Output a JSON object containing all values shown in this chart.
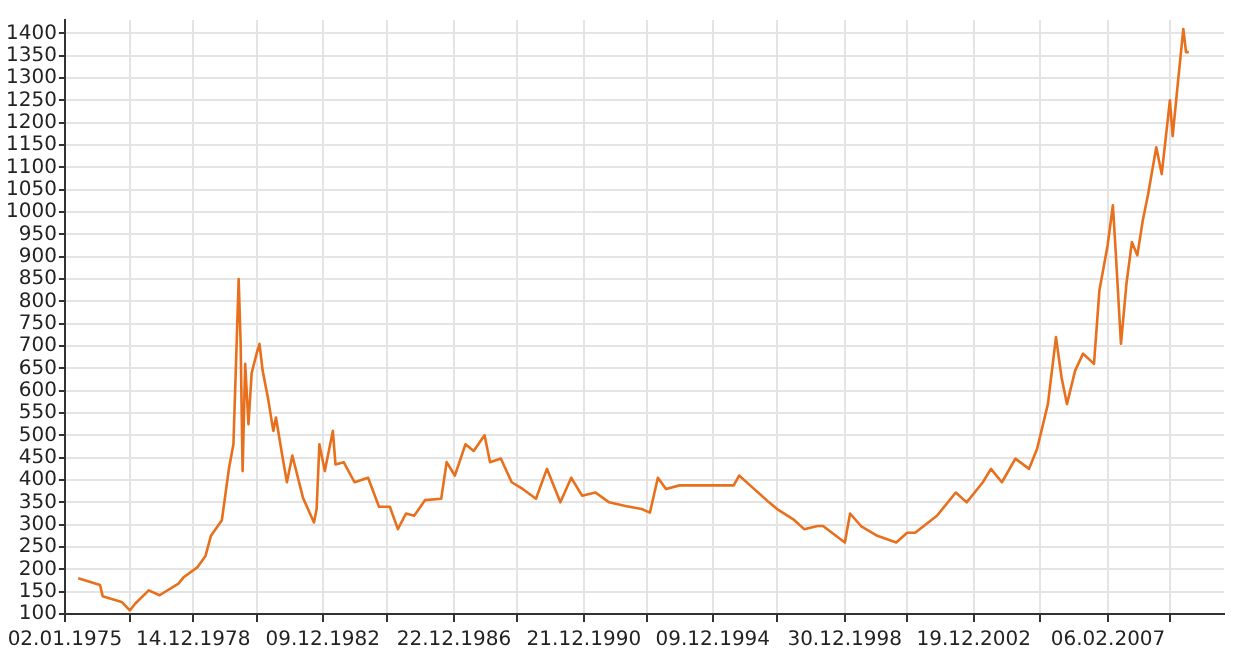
{
  "chart_data": {
    "type": "line",
    "x": [
      "1975-06",
      "1976-02",
      "1976-03",
      "1976-10",
      "1977-01",
      "1977-03",
      "1977-08",
      "1977-12",
      "1978-07",
      "1978-09",
      "1979-02",
      "1979-05",
      "1979-07",
      "1979-11",
      "1980-01-19",
      "1980-03-10",
      "1980-05-08",
      "1980-05-30",
      "1980-06-21",
      "1980-07-20",
      "1980-08-26",
      "1980-10-01",
      "1980-11-28",
      "1980-12-28",
      "1981-02",
      "1981-04",
      "1981-06",
      "1981-07",
      "1981-09",
      "1981-11",
      "1982-01",
      "1982-05",
      "1982-09",
      "1982-10",
      "1982-11",
      "1983-01",
      "1983-04",
      "1983-05",
      "1983-08",
      "1983-12",
      "1984-05",
      "1984-09",
      "1985-01",
      "1985-04",
      "1985-07",
      "1985-10",
      "1986-02",
      "1986-08",
      "1986-10",
      "1987-01",
      "1987-05",
      "1987-08",
      "1987-12",
      "1988-02",
      "1988-06",
      "1988-10",
      "1989-02",
      "1989-07",
      "1989-11",
      "1990-04",
      "1990-08",
      "1990-12",
      "1991-05",
      "1991-10",
      "1992-04",
      "1992-10",
      "1993-01",
      "1993-04",
      "1993-07",
      "1993-12",
      "1994-07",
      "1995-02",
      "1995-08",
      "1995-10",
      "1996-02",
      "1996-09",
      "1996-12",
      "1997-06",
      "1997-10",
      "1998-03",
      "1998-05",
      "1999-01",
      "1999-03",
      "1999-07",
      "2000-01",
      "2000-08",
      "2000-12",
      "2001-03",
      "2001-11",
      "2002-06",
      "2002-10",
      "2003-04",
      "2003-07",
      "2003-11",
      "2004-04",
      "2004-09",
      "2004-12",
      "2005-04",
      "2005-07",
      "2005-09",
      "2005-11",
      "2006-02",
      "2006-05",
      "2006-09",
      "2006-11",
      "2007-02",
      "2007-04",
      "2007-05",
      "2007-07",
      "2007-09",
      "2007-11",
      "2008-01",
      "2008-03",
      "2008-05",
      "2008-08",
      "2008-10",
      "2009-01",
      "2009-02",
      "2009-04",
      "2009-06",
      "2009-07",
      "2009-08"
    ],
    "series": [
      {
        "color": "#e8701c",
        "values": [
          180,
          165,
          140,
          127,
          108,
          123,
          153,
          142,
          168,
          183,
          205,
          230,
          275,
          310,
          425,
          480,
          850,
          705,
          420,
          660,
          525,
          640,
          685,
          705,
          645,
          585,
          510,
          540,
          465,
          395,
          455,
          360,
          305,
          335,
          480,
          420,
          510,
          435,
          440,
          395,
          405,
          340,
          340,
          290,
          325,
          320,
          355,
          358,
          440,
          410,
          480,
          465,
          500,
          440,
          448,
          395,
          380,
          358,
          425,
          350,
          405,
          365,
          372,
          350,
          342,
          335,
          327,
          405,
          380,
          388,
          388,
          388,
          388,
          410,
          388,
          350,
          335,
          312,
          290,
          297,
          297,
          260,
          325,
          297,
          275,
          260,
          282,
          282,
          320,
          372,
          350,
          395,
          425,
          395,
          448,
          425,
          470,
          570,
          720,
          630,
          570,
          645,
          683,
          660,
          825,
          925,
          1015,
          918,
          705,
          840,
          933,
          903,
          980,
          1040,
          1145,
          1085,
          1250,
          1170,
          1290,
          1410,
          1358,
          1358
        ]
      }
    ],
    "xlim": [
      "1975-01-02",
      "2010-09"
    ],
    "xticks": [
      {
        "value": "1975-01-02",
        "label": "02.01.1975"
      },
      {
        "value": "1977-01",
        "label": null
      },
      {
        "value": "1978-12-14",
        "label": "14.12.1978"
      },
      {
        "value": "1980-12",
        "label": null
      },
      {
        "value": "1982-12-09",
        "label": "09.12.1982"
      },
      {
        "value": "1984-12",
        "label": null
      },
      {
        "value": "1986-12-22",
        "label": "22.12.1986"
      },
      {
        "value": "1988-12",
        "label": null
      },
      {
        "value": "1990-12-21",
        "label": "21.12.1990"
      },
      {
        "value": "1992-12",
        "label": null
      },
      {
        "value": "1994-12-09",
        "label": "09.12.1994"
      },
      {
        "value": "1996-12",
        "label": null
      },
      {
        "value": "1998-12-30",
        "label": "30.12.1998"
      },
      {
        "value": "2000-12",
        "label": null
      },
      {
        "value": "2002-12-19",
        "label": "19.12.2002"
      },
      {
        "value": "2005-01",
        "label": null
      },
      {
        "value": "2007-02-06",
        "label": "06.02.2007"
      },
      {
        "value": "2009-01",
        "label": null
      }
    ],
    "ylim": [
      100,
      1430
    ],
    "yticks": [
      100,
      150,
      200,
      250,
      300,
      350,
      400,
      450,
      500,
      550,
      600,
      650,
      700,
      750,
      800,
      850,
      900,
      950,
      1000,
      1050,
      1100,
      1150,
      1200,
      1250,
      1300,
      1350,
      1400
    ],
    "grid": true
  }
}
